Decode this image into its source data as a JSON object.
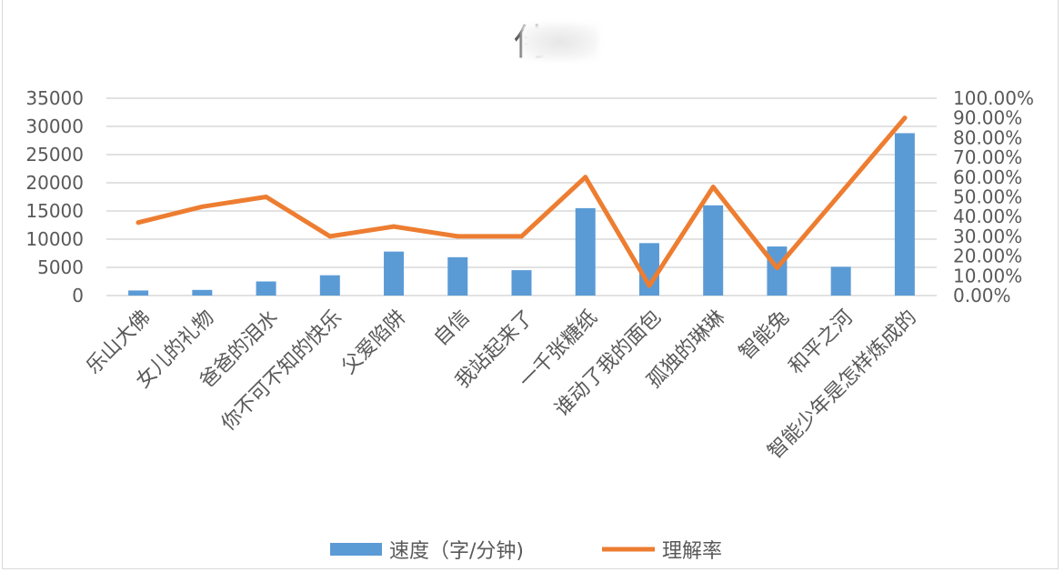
{
  "chart_data": {
    "type": "bar",
    "title": "侍",
    "categories": [
      "乐山大佛",
      "女儿的礼物",
      "爸爸的泪水",
      "你不可不知的快乐",
      "父爱陷阱",
      "自信",
      "我站起来了",
      "一千张糖纸",
      "谁动了我的面包",
      "孤独的琳琳",
      "智能兔",
      "和平之河",
      "智能少年是怎样炼成的"
    ],
    "series": [
      {
        "name": "速度（字/分钟)",
        "type": "bar",
        "axis": "left",
        "color": "#5b9bd5",
        "values": [
          900,
          1000,
          2500,
          3600,
          7800,
          6800,
          4500,
          15500,
          9300,
          16000,
          8700,
          5100,
          28800
        ]
      },
      {
        "name": "理解率",
        "type": "line",
        "axis": "right",
        "color": "#ed7d31",
        "values": [
          0.37,
          0.45,
          0.5,
          0.3,
          0.35,
          0.3,
          0.3,
          0.6,
          0.05,
          0.55,
          0.14,
          0.52,
          0.9
        ]
      }
    ],
    "y_left": {
      "min": 0,
      "max": 35000,
      "ticks": [
        "0",
        "5000",
        "10000",
        "15000",
        "20000",
        "25000",
        "30000",
        "35000"
      ]
    },
    "y_right": {
      "min": 0,
      "max": 1.0,
      "ticks": [
        "0.00%",
        "10.00%",
        "20.00%",
        "30.00%",
        "40.00%",
        "50.00%",
        "60.00%",
        "70.00%",
        "80.00%",
        "90.00%",
        "100.00%"
      ]
    },
    "grid": true,
    "legend": "bottom"
  }
}
